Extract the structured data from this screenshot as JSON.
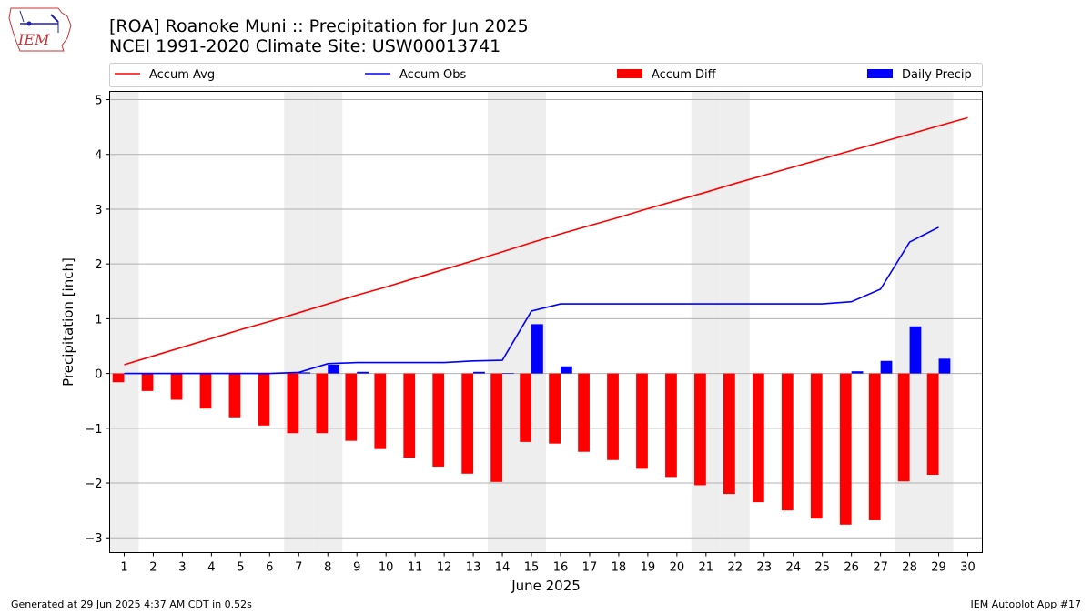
{
  "header": {
    "title_line1": "[ROA] Roanoke Muni :: Precipitation for Jun 2025",
    "title_line2": "NCEI 1991-2020 Climate Site: USW00013741",
    "logo_text": "IEM"
  },
  "footer": {
    "generated": "Generated at 29 Jun 2025 4:37 AM CDT in 0.52s",
    "app": "IEM Autoplot App #17"
  },
  "colors": {
    "avg": "#ff0000",
    "obs": "#0000ff",
    "diff": "#ff0000",
    "daily": "#0000ff",
    "weekend": "#eeeeee",
    "grid": "#b0b0b0"
  },
  "chart_data": {
    "type": "bar",
    "xlabel": "June 2025",
    "ylabel": "Precipitation [inch]",
    "xlim": [
      0.5,
      30.5
    ],
    "ylim": [
      -3.27,
      5.15
    ],
    "yticks": [
      -3,
      -2,
      -1,
      0,
      1,
      2,
      3,
      4,
      5
    ],
    "ytick_labels": [
      "−3",
      "−2",
      "−1",
      "0",
      "1",
      "2",
      "3",
      "4",
      "5"
    ],
    "grid": "horizontal",
    "legend_placement": "top",
    "days": [
      1,
      2,
      3,
      4,
      5,
      6,
      7,
      8,
      9,
      10,
      11,
      12,
      13,
      14,
      15,
      16,
      17,
      18,
      19,
      20,
      21,
      22,
      23,
      24,
      25,
      26,
      27,
      28,
      29,
      30
    ],
    "weekend_days": [
      1,
      7,
      8,
      14,
      15,
      21,
      22,
      28,
      29
    ],
    "series": [
      {
        "name": "Accum Avg",
        "kind": "line",
        "x": [
          1,
          2,
          3,
          4,
          5,
          6,
          7,
          8,
          9,
          10,
          11,
          12,
          13,
          14,
          15,
          16,
          17,
          18,
          19,
          20,
          21,
          22,
          23,
          24,
          25,
          26,
          27,
          28,
          29,
          30
        ],
        "values": [
          0.16,
          0.32,
          0.48,
          0.64,
          0.8,
          0.95,
          1.11,
          1.27,
          1.43,
          1.58,
          1.74,
          1.9,
          2.06,
          2.22,
          2.39,
          2.55,
          2.7,
          2.85,
          3.01,
          3.16,
          3.31,
          3.47,
          3.62,
          3.77,
          3.92,
          4.07,
          4.22,
          4.37,
          4.52,
          4.67
        ]
      },
      {
        "name": "Accum Obs",
        "kind": "line",
        "x": [
          1,
          2,
          3,
          4,
          5,
          6,
          7,
          8,
          9,
          10,
          11,
          12,
          13,
          14,
          15,
          16,
          17,
          18,
          19,
          20,
          21,
          22,
          23,
          24,
          25,
          26,
          27,
          28,
          29
        ],
        "values": [
          0.0,
          0.0,
          0.0,
          0.0,
          0.0,
          0.0,
          0.02,
          0.18,
          0.2,
          0.2,
          0.2,
          0.2,
          0.23,
          0.24,
          1.14,
          1.27,
          1.27,
          1.27,
          1.27,
          1.27,
          1.27,
          1.27,
          1.27,
          1.27,
          1.27,
          1.31,
          1.54,
          2.4,
          2.67
        ]
      },
      {
        "name": "Accum Diff",
        "kind": "bar",
        "x": [
          1,
          2,
          3,
          4,
          5,
          6,
          7,
          8,
          9,
          10,
          11,
          12,
          13,
          14,
          15,
          16,
          17,
          18,
          19,
          20,
          21,
          22,
          23,
          24,
          25,
          26,
          27,
          28,
          29
        ],
        "values": [
          -0.16,
          -0.32,
          -0.48,
          -0.64,
          -0.8,
          -0.95,
          -1.09,
          -1.09,
          -1.23,
          -1.38,
          -1.54,
          -1.7,
          -1.83,
          -1.98,
          -1.25,
          -1.28,
          -1.43,
          -1.58,
          -1.74,
          -1.89,
          -2.04,
          -2.2,
          -2.35,
          -2.5,
          -2.65,
          -2.76,
          -2.68,
          -1.97,
          -1.85
        ]
      },
      {
        "name": "Daily Precip",
        "kind": "bar",
        "x": [
          1,
          2,
          3,
          4,
          5,
          6,
          7,
          8,
          9,
          10,
          11,
          12,
          13,
          14,
          15,
          16,
          17,
          18,
          19,
          20,
          21,
          22,
          23,
          24,
          25,
          26,
          27,
          28,
          29
        ],
        "values": [
          0,
          0,
          0,
          0,
          0,
          0,
          0.02,
          0.16,
          0.03,
          0,
          0,
          0,
          0.03,
          0.01,
          0.9,
          0.13,
          0,
          0,
          0,
          0,
          0,
          0,
          0,
          0,
          0,
          0.04,
          0.23,
          0.86,
          0.27
        ]
      }
    ]
  }
}
